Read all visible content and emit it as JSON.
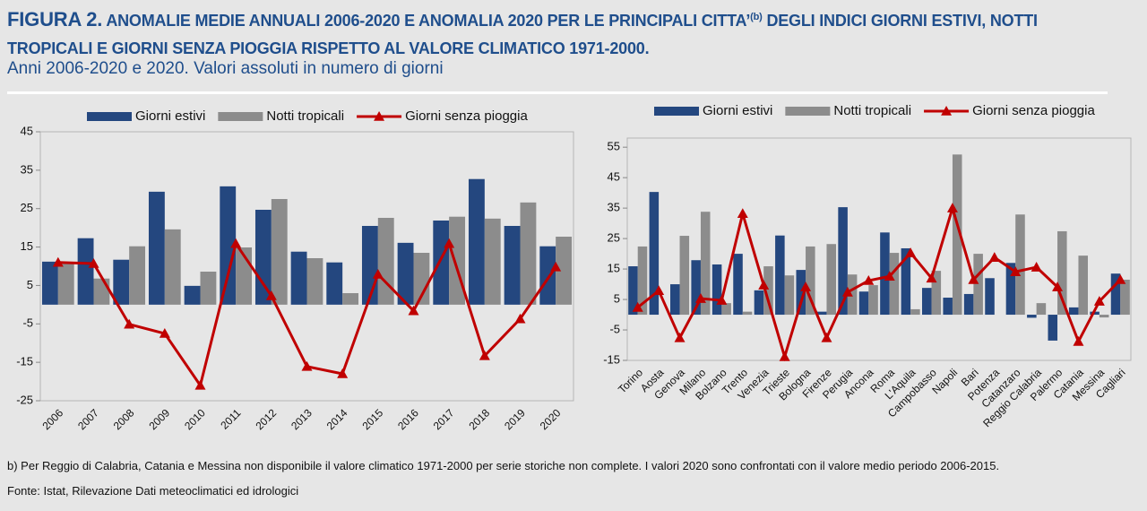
{
  "header": {
    "figure_label": "FIGURA 2.",
    "title_part1": "ANOMALIE MEDIE ANNUALI 2006-2020 E ANOMALIA 2020 PER LE PRINCIPALI CITTA’",
    "title_note": "(b)",
    "title_part2": "DEGLI INDICI GIORNI ESTIVI, NOTTI TROPICALI E GIORNI SENZA PIOGGIA RISPETTO AL VALORE CLIMATICO 1971-2000.",
    "subtitle": "Anni 2006-2020 e 2020. Valori assoluti in numero di giorni"
  },
  "chart_data": [
    {
      "type": "bar",
      "legend": "top",
      "categories": [
        "2006",
        "2007",
        "2008",
        "2009",
        "2010",
        "2011",
        "2012",
        "2013",
        "2014",
        "2015",
        "2016",
        "2017",
        "2018",
        "2019",
        "2020"
      ],
      "series": [
        {
          "name": "Giorni estivi",
          "color": "#24477f",
          "values": [
            11.2,
            17.3,
            11.7,
            29.4,
            4.9,
            30.8,
            24.7,
            13.8,
            11,
            20.5,
            16.1,
            21.9,
            32.7,
            20.5,
            15.2
          ]
        },
        {
          "name": "Notti tropicali",
          "color": "#8c8c8c",
          "values": [
            11,
            6.8,
            15.2,
            19.6,
            8.6,
            14.9,
            27.5,
            12.1,
            3,
            22.6,
            13.5,
            22.9,
            22.4,
            26.6,
            17.7
          ]
        },
        {
          "name": "Giorni senza pioggia",
          "color": "#c00000",
          "type": "line",
          "values": [
            11,
            10.7,
            -5.1,
            -7.5,
            -21,
            15.9,
            2.3,
            -16.1,
            -18,
            7.9,
            -1.6,
            15.9,
            -13.3,
            -3.7,
            9.8
          ]
        }
      ],
      "ylim": [
        -25,
        45
      ],
      "yticks": [
        -25,
        -15,
        -5,
        5,
        15,
        25,
        35,
        45
      ]
    },
    {
      "type": "bar",
      "legend": "top",
      "categories": [
        "Torino",
        "Aosta",
        "Genova",
        "Milano",
        "Bolzano",
        "Trento",
        "Venezia",
        "Trieste",
        "Bologna",
        "Firenze",
        "Perugia",
        "Ancona",
        "Roma",
        "L'Aquila",
        "Campobasso",
        "Napoli",
        "Bari",
        "Potenza",
        "Catanzaro",
        "Reggio Calabria",
        "Palermo",
        "Catania",
        "Messina",
        "Cagliari"
      ],
      "series": [
        {
          "name": "Giorni estivi",
          "color": "#24477f",
          "values": [
            15.9,
            40.3,
            10,
            17.9,
            16.5,
            20,
            8,
            26,
            14.7,
            1,
            35.3,
            7.6,
            27,
            21.8,
            8.8,
            5.6,
            6.8,
            12,
            17,
            -1,
            -8.5,
            2.4,
            1,
            13.5
          ]
        },
        {
          "name": "Notti tropicali",
          "color": "#8c8c8c",
          "values": [
            22.4,
            0,
            25.9,
            33.8,
            3.8,
            1,
            15.9,
            12.9,
            22.4,
            23.2,
            13.2,
            9.7,
            20.3,
            1.8,
            14.4,
            52.6,
            20,
            0,
            32.9,
            3.8,
            27.4,
            19.4,
            -0.9,
            11.5
          ]
        },
        {
          "name": "Giorni senza pioggia",
          "color": "#c00000",
          "type": "line",
          "values": [
            2.4,
            7.9,
            -7.6,
            5.3,
            4.7,
            33.2,
            9.7,
            -13.8,
            9.1,
            -7.6,
            7.4,
            11.2,
            12.6,
            20.3,
            12,
            35,
            11.5,
            18.8,
            14.1,
            15.6,
            9.1,
            -8.8,
            4.4,
            11.5
          ]
        }
      ],
      "ylim": [
        -15,
        58
      ],
      "yticks": [
        -15,
        -5,
        5,
        15,
        25,
        35,
        45,
        55
      ]
    }
  ],
  "footer": {
    "note": "b) Per Reggio di Calabria, Catania e Messina non disponibile il valore climatico 1971-2000 per serie storiche non complete. I valori 2020 sono confrontati con il valore medio periodo 2006-2015.",
    "source": "Fonte: Istat, Rilevazione Dati meteoclimatici ed idrologici"
  }
}
